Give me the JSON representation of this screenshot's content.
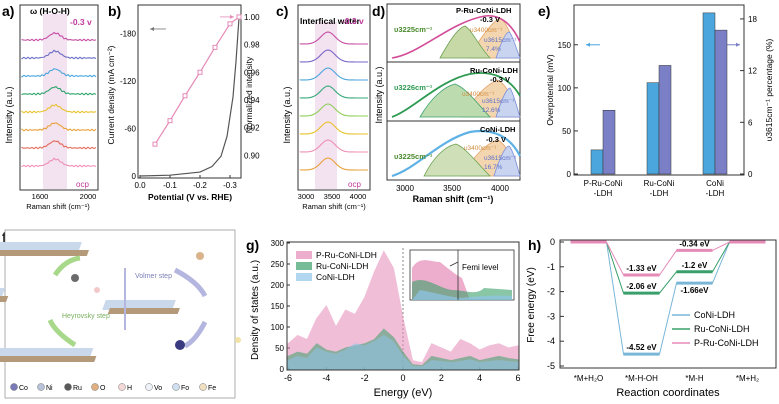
{
  "panels": {
    "a": {
      "label": "a)",
      "header": "ω (H-O-H)",
      "voltage": "-0.3 v",
      "ocp": "ocp",
      "ylabel": "Intensity (a.u.)",
      "xlabel": "Raman shift (cm⁻¹)",
      "xticks": [
        "1600",
        "2000"
      ]
    },
    "b": {
      "label": "b)",
      "ylabel": "Current density (mA cm⁻²)",
      "y2label": "Normalized intensity",
      "xlabel": "Potential (V vs. RHE)",
      "xticks": [
        "0.0",
        "-0.1",
        "-0.2",
        "-0.3"
      ],
      "yticks": [
        "-180",
        "-120",
        "-60",
        "0"
      ],
      "y2ticks": [
        "1.00",
        "0.98",
        "0.96",
        "0.94",
        "0.92",
        "0.90"
      ]
    },
    "c": {
      "label": "c)",
      "header": "Interfical water",
      "voltage": "-0.3 v",
      "ocp": "ocp",
      "ylabel": "Intensity (a.u.)",
      "xlabel": "Raman shift (cm⁻¹)",
      "xticks": [
        "3000",
        "3500",
        "4000"
      ]
    },
    "d": {
      "label": "d)",
      "ylabel": "Intensity (a.u.)",
      "xlabel": "Raman shift (cm⁻¹)",
      "xticks": [
        "3000",
        "3500",
        "4000"
      ],
      "rows": [
        {
          "name": "P-Ru-CoNi-LDH",
          "voltage": "-0.3 V",
          "peak_left": "υ3225cm⁻¹",
          "peak_mid": "υ3400cm⁻¹",
          "peak_right": "υ3615cm⁻¹",
          "percent": "7.4%"
        },
        {
          "name": "Ru-CoNi-LDH",
          "voltage": "-0.3 V",
          "peak_left": "υ3226cm⁻¹",
          "peak_mid": "υ3400cm⁻¹",
          "peak_right": "υ3615cm⁻¹",
          "percent": "12.6%"
        },
        {
          "name": "CoNi-LDH",
          "voltage": "-0.3 V",
          "peak_left": "υ3225cm⁻¹",
          "peak_mid": "υ3400cm⁻¹",
          "peak_right": "υ3615cm⁻¹",
          "percent": "16.7%"
        }
      ]
    },
    "f": {
      "label": "f)",
      "step1": "Volmer step",
      "step2": "Heyrovsky step",
      "legend": [
        "Co",
        "Ni",
        "Ru",
        "O",
        "H",
        "Vo",
        "Fo",
        "Fe"
      ]
    },
    "g": {
      "label": "g)",
      "inset_label": "Femi level"
    },
    "h": {
      "label": "h)",
      "energy_labels": {
        "p_mid": "-1.33 eV",
        "ru_mid": "-2.06 eV",
        "coni_mid": "-4.52 eV",
        "p_h": "-0.34 eV",
        "ru_h": "-1.2 eV",
        "coni_h": "-1.66eV"
      }
    }
  },
  "chart_data": [
    {
      "id": "b",
      "type": "line",
      "title": "",
      "xlabel": "Potential (V vs. RHE)",
      "ylabel": "Current density (mA cm⁻²)",
      "y2label": "Normalized intensity",
      "xlim": [
        0.0,
        -0.33
      ],
      "ylim": [
        0,
        -210
      ],
      "y2lim": [
        0.885,
        1.005
      ],
      "series": [
        {
          "name": "Current density",
          "axis": "left",
          "x": [
            0.0,
            -0.1,
            -0.2,
            -0.24,
            -0.27,
            -0.29,
            -0.31,
            -0.32,
            -0.33
          ],
          "values": [
            0,
            -1,
            -5,
            -12,
            -25,
            -50,
            -100,
            -145,
            -200
          ]
        },
        {
          "name": "Normalized intensity",
          "axis": "right",
          "x": [
            -0.05,
            -0.1,
            -0.15,
            -0.2,
            -0.25,
            -0.3,
            -0.33
          ],
          "values": [
            0.908,
            0.925,
            0.943,
            0.96,
            0.978,
            0.995,
            1.0
          ]
        }
      ]
    },
    {
      "id": "e",
      "type": "bar",
      "title": "",
      "xlabel": "",
      "ylabel": "Overpotential (mV)",
      "y2label": "υ3615cm⁻¹ percentage (%)",
      "categories": [
        "P-Ru-CoNi\n-LDH",
        "Ru-CoNi\n-LDH",
        "CoNi\n-LDH"
      ],
      "ylim": [
        0,
        195
      ],
      "y2lim": [
        0,
        19.5
      ],
      "yticks": [
        0,
        50,
        100,
        150
      ],
      "y2ticks": [
        0,
        6,
        12,
        18
      ],
      "series": [
        {
          "name": "Overpotential",
          "axis": "left",
          "color": "#4aa6dc",
          "values": [
            28,
            106,
            187
          ]
        },
        {
          "name": "υ3615cm⁻¹ percentage",
          "axis": "right",
          "color": "#7b7fc6",
          "values": [
            7.4,
            12.6,
            16.7
          ]
        }
      ]
    },
    {
      "id": "g",
      "type": "area",
      "title": "",
      "xlabel": "Energy (eV)",
      "ylabel": "Density of states (a.u.)",
      "xlim": [
        -6,
        6
      ],
      "ylim": [
        0,
        300
      ],
      "xticks": [
        -6,
        -4,
        -2,
        0,
        2,
        4,
        6
      ],
      "yticks": [
        0,
        50,
        100,
        150,
        200,
        250,
        300
      ],
      "x": [
        -6,
        -5.5,
        -5,
        -4.5,
        -4,
        -3.5,
        -3,
        -2.5,
        -2,
        -1.5,
        -1,
        -0.5,
        0,
        0.5,
        1,
        1.5,
        2,
        2.5,
        3,
        3.5,
        4,
        4.5,
        5,
        5.5,
        6
      ],
      "series": [
        {
          "name": "P-Ru-CoNi-LDH",
          "color": "#e68ab8",
          "values": [
            60,
            80,
            70,
            120,
            150,
            100,
            140,
            130,
            170,
            230,
            280,
            240,
            120,
            20,
            15,
            60,
            50,
            40,
            70,
            60,
            45,
            55,
            60,
            50,
            55
          ]
        },
        {
          "name": "Ru-CoNi-LDH",
          "color": "#3aa06b",
          "values": [
            30,
            40,
            35,
            60,
            45,
            40,
            50,
            55,
            60,
            70,
            95,
            75,
            40,
            10,
            8,
            30,
            25,
            20,
            25,
            30,
            20,
            25,
            30,
            25,
            22
          ]
        },
        {
          "name": "CoNi-LDH",
          "color": "#8fc4ea",
          "values": [
            20,
            30,
            25,
            50,
            40,
            35,
            45,
            60,
            55,
            65,
            80,
            65,
            30,
            6,
            5,
            20,
            18,
            15,
            18,
            22,
            15,
            18,
            20,
            18,
            16
          ]
        }
      ]
    },
    {
      "id": "h",
      "type": "line",
      "title": "",
      "xlabel": "Reaction coordinates",
      "ylabel": "Free energy (eV)",
      "categories": [
        "*M+H₂O",
        "*M-H-OH",
        "*M-H",
        "*M+H₂"
      ],
      "ylim": [
        -5,
        0
      ],
      "yticks": [
        -5,
        -4,
        -3,
        -2,
        -1,
        0
      ],
      "series": [
        {
          "name": "CoNi-LDH",
          "color": "#7ab6d8",
          "values": [
            0,
            -4.52,
            -1.66,
            0
          ]
        },
        {
          "name": "Ru-CoNi-LDH",
          "color": "#3aa06b",
          "values": [
            0,
            -2.06,
            -1.2,
            0
          ]
        },
        {
          "name": "P-Ru-CoNi-LDH",
          "color": "#e68ab8",
          "values": [
            0,
            -1.33,
            -0.34,
            0
          ]
        }
      ]
    }
  ]
}
